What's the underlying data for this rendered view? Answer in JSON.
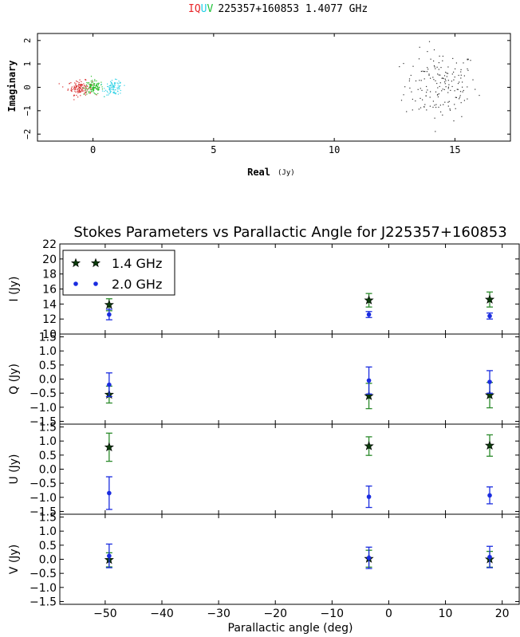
{
  "colors": {
    "I": "#e8262a",
    "Q": "#e8262a",
    "U": "#22cfe6",
    "V": "#22c23a",
    "scatter_I": "#d82a2a",
    "scatter_Q": "#2ec12e",
    "scatter_U": "#33d3e6",
    "scatter_V": "#333333",
    "series_14": "#0a3a0a",
    "series_14_err": "#2a8a2a",
    "series_20": "#1a2ce0",
    "axis": "#000000"
  },
  "top_title": {
    "I": "I",
    "Q": "Q",
    "U": "U",
    "V": "V",
    "rest": "225357+160853  1.4077 GHz"
  },
  "top_chart": {
    "xlabel": "Real",
    "xunit": "(Jy)",
    "ylabel": "Imaginary",
    "xlim": [
      -2.3,
      17.3
    ],
    "ylim": [
      -2.3,
      2.3
    ],
    "xticks": [
      "0",
      "5",
      "10",
      "15"
    ],
    "xtick_values": [
      0,
      5,
      10,
      15
    ],
    "yticks": [
      "2",
      "1",
      "0",
      "−1",
      "−2"
    ],
    "ytick_values": [
      2,
      1,
      0,
      -1,
      -2
    ],
    "clusters": [
      {
        "name": "I",
        "cx": 14.4,
        "cy": 0.1,
        "sx": 0.75,
        "sy": 0.75,
        "n": 170
      },
      {
        "name": "Q",
        "cx": -0.55,
        "cy": 0.0,
        "sx": 0.25,
        "sy": 0.15,
        "n": 130
      },
      {
        "name": "V",
        "cx": 0.0,
        "cy": 0.0,
        "sx": 0.2,
        "sy": 0.15,
        "n": 110
      },
      {
        "name": "U",
        "cx": 0.85,
        "cy": 0.0,
        "sx": 0.18,
        "sy": 0.15,
        "n": 100
      }
    ]
  },
  "chart_data": {
    "type": "scatter",
    "title": "Stokes Parameters vs Parallactic Angle for J225357+160853",
    "xlabel": "Parallactic angle (deg)",
    "xlim": [
      -58,
      23
    ],
    "xticks": [
      "−50",
      "−40",
      "−30",
      "−20",
      "−10",
      "0",
      "10",
      "20"
    ],
    "xtick_values": [
      -50,
      -40,
      -30,
      -20,
      -10,
      0,
      10,
      20
    ],
    "legend": {
      "placement": "top-left",
      "entries": [
        "1.4 GHz",
        "2.0 GHz"
      ]
    },
    "panels": [
      {
        "ylabel": "I (Jy)",
        "ylim": [
          10,
          22
        ],
        "yticks": [
          "22",
          "20",
          "18",
          "16",
          "14",
          "12",
          "10"
        ],
        "ytick_values": [
          22,
          20,
          18,
          16,
          14,
          12,
          10
        ],
        "series": [
          {
            "name": "1.4 GHz",
            "marker": "star",
            "x": [
              -49.3,
              -3.5,
              17.8
            ],
            "y": [
              13.9,
              14.5,
              14.6
            ],
            "err": [
              0.8,
              0.9,
              1.0
            ]
          },
          {
            "name": "2.0 GHz",
            "marker": "dot",
            "x": [
              -49.3,
              -3.5,
              17.8
            ],
            "y": [
              12.6,
              12.6,
              12.4
            ],
            "err": [
              0.7,
              0.4,
              0.4
            ]
          }
        ]
      },
      {
        "ylabel": "Q (Jy)",
        "ylim": [
          -1.6,
          1.6
        ],
        "yticks": [
          "1.5",
          "1.0",
          "0.5",
          "0.0",
          "−0.5",
          "−1.0",
          "−1.5"
        ],
        "ytick_values": [
          1.5,
          1.0,
          0.5,
          0.0,
          -0.5,
          -1.0,
          -1.5
        ],
        "series": [
          {
            "name": "1.4 GHz",
            "marker": "star",
            "x": [
              -49.3,
              -3.5,
              17.8
            ],
            "y": [
              -0.55,
              -0.6,
              -0.57
            ],
            "err": [
              0.3,
              0.45,
              0.45
            ]
          },
          {
            "name": "2.0 GHz",
            "marker": "dot",
            "x": [
              -49.3,
              -3.5,
              17.8
            ],
            "y": [
              -0.2,
              -0.05,
              -0.1
            ],
            "err": [
              0.42,
              0.48,
              0.4
            ]
          }
        ]
      },
      {
        "ylabel": "U (Jy)",
        "ylim": [
          -1.6,
          1.6
        ],
        "yticks": [
          "1.5",
          "1.0",
          "0.5",
          "0.0",
          "−0.5",
          "−1.0",
          "−1.5"
        ],
        "ytick_values": [
          1.5,
          1.0,
          0.5,
          0.0,
          -0.5,
          -1.0,
          -1.5
        ],
        "series": [
          {
            "name": "1.4 GHz",
            "marker": "star",
            "x": [
              -49.3,
              -3.5,
              17.8
            ],
            "y": [
              0.78,
              0.82,
              0.84
            ],
            "err": [
              0.5,
              0.33,
              0.38
            ]
          },
          {
            "name": "2.0 GHz",
            "marker": "dot",
            "x": [
              -49.3,
              -3.5,
              17.8
            ],
            "y": [
              -0.85,
              -0.98,
              -0.93
            ],
            "err": [
              0.58,
              0.38,
              0.3
            ]
          }
        ]
      },
      {
        "ylabel": "V (Jy)",
        "ylim": [
          -1.6,
          1.6
        ],
        "yticks": [
          "1.5",
          "1.0",
          "0.5",
          "0.0",
          "−0.5",
          "−1.0",
          "−1.5"
        ],
        "ytick_values": [
          1.5,
          1.0,
          0.5,
          0.0,
          -0.5,
          -1.0,
          -1.5
        ],
        "series": [
          {
            "name": "1.4 GHz",
            "marker": "star",
            "x": [
              -49.3,
              -3.5,
              17.8
            ],
            "y": [
              -0.02,
              0.02,
              0.0
            ],
            "err": [
              0.25,
              0.3,
              0.28
            ]
          },
          {
            "name": "2.0 GHz",
            "marker": "dot",
            "x": [
              -49.3,
              -3.5,
              17.8
            ],
            "y": [
              0.12,
              0.05,
              0.08
            ],
            "err": [
              0.42,
              0.38,
              0.38
            ]
          }
        ]
      }
    ]
  }
}
